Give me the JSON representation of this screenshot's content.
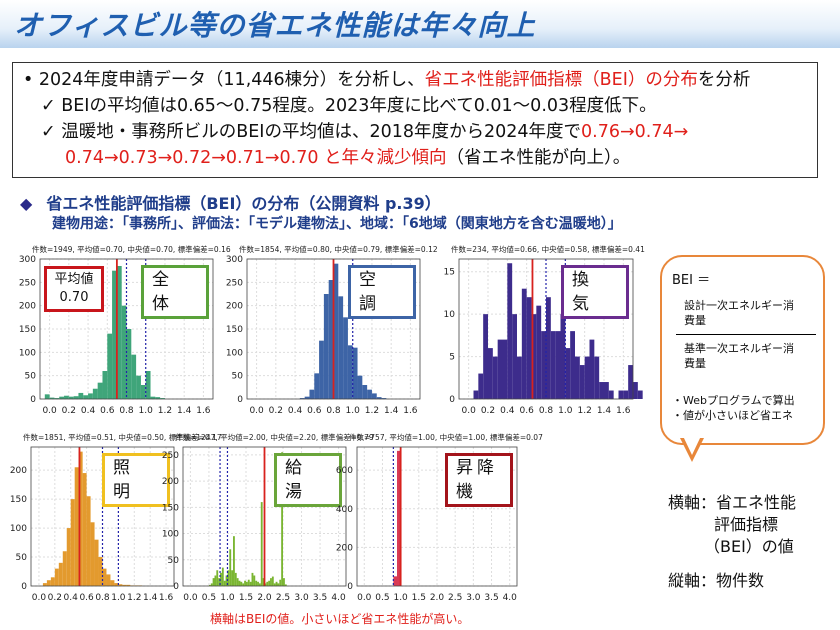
{
  "title": "オフィスビル等の省エネ性能は年々向上",
  "summary": {
    "line1_a": "• 2024年度申請データ（11,446棟分）を分析し、",
    "line1_red": "省エネ性能評価指標（BEI）の分布",
    "line1_b": "を分析",
    "line2": "✓ BEIの平均値は0.65～0.75程度。2023年度に比べて0.01～0.03程度低下。",
    "line3_a": "✓ 温暖地・事務所ビルのBEIの平均値は、2018年度から2024年度で",
    "line3_red": "0.76→0.74→",
    "line4_red": "0.74→0.73→0.72→0.71→0.70 と年々減少傾向",
    "line4_b": "（省エネ性能が向上）。"
  },
  "section": {
    "marker": "◆",
    "title": "省エネ性能評価指標（BEI）の分布（公開資料 p.39）",
    "subtitle": "建物用途：「事務所」、評価法：「モデル建物法」、地域：「6地域（関東地方を含む温暖地）」"
  },
  "mean_box": {
    "label": "平均値",
    "value": "0.70"
  },
  "callout": {
    "formula": "BEI ＝",
    "numerator": "設計一次エネルギー消費量",
    "denominator": "基準一次エネルギー消費量",
    "notes": [
      "・Webプログラムで算出",
      "・値が小さいほど省エネ"
    ]
  },
  "axis_notes": {
    "x": "横軸：省エネ性能",
    "x2": "評価指標",
    "x3": "（BEI）の値",
    "y": "縦軸：物件数"
  },
  "footnote": "横軸はBEIの値。小さいほど省エネ性能が高い。",
  "chart_data": [
    {
      "type": "bar",
      "label": "全 体",
      "stats": "件数=1949, 平均値=0.70, 中央値=0.70, 標準偏差=0.16",
      "color": "#3fa57a",
      "label_color": "#5aa23a",
      "mean": 0.7,
      "ref_lines": [
        0.8,
        1.0
      ],
      "xlim": [
        -0.1,
        1.7
      ],
      "ylim": [
        0,
        300
      ],
      "xticks": [
        "0.0",
        "0.2",
        "0.4",
        "0.6",
        "0.8",
        "1.0",
        "1.2",
        "1.4",
        "1.6"
      ],
      "yticks": [
        "0",
        "50",
        "100",
        "150",
        "200",
        "250",
        "300"
      ],
      "bin_start": -0.05,
      "bin_width": 0.05,
      "counts": [
        10,
        3,
        2,
        5,
        7,
        5,
        6,
        13,
        8,
        12,
        22,
        35,
        60,
        140,
        275,
        285,
        200,
        150,
        95,
        50,
        30,
        60,
        5,
        4,
        2
      ]
    },
    {
      "type": "bar",
      "label": "空 調",
      "stats": "件数=1854, 平均値=0.80, 中央値=0.79, 標準偏差=0.12",
      "color": "#3d64a6",
      "label_color": "#3d64a6",
      "mean": 0.8,
      "ref_lines": [
        1.0
      ],
      "xlim": [
        -0.1,
        1.7
      ],
      "ylim": [
        0,
        300
      ],
      "xticks": [
        "0.0",
        "0.2",
        "0.4",
        "0.6",
        "0.8",
        "1.0",
        "1.2",
        "1.4",
        "1.6"
      ],
      "yticks": [
        "0",
        "50",
        "100",
        "150",
        "200",
        "250",
        "300"
      ],
      "bin_start": 0.45,
      "bin_width": 0.05,
      "counts": [
        2,
        5,
        20,
        55,
        125,
        225,
        255,
        290,
        220,
        175,
        115,
        110,
        50,
        30,
        20,
        12,
        4,
        2
      ]
    },
    {
      "type": "bar",
      "label": "換 気",
      "stats": "件数=234, 平均値=0.66, 中央値=0.58, 標準偏差=0.41",
      "color": "#3d2c8c",
      "label_color": "#6a2d8f",
      "mean": 0.66,
      "ref_lines": [
        0.8,
        1.0
      ],
      "xlim": [
        -0.1,
        1.7
      ],
      "ylim": [
        0,
        16.5
      ],
      "xticks": [
        "0.0",
        "0.2",
        "0.4",
        "0.6",
        "0.8",
        "1.0",
        "1.2",
        "1.4",
        "1.6"
      ],
      "yticks": [
        "0",
        "5",
        "10",
        "15"
      ],
      "bin_start": 0.05,
      "bin_width": 0.05,
      "counts": [
        1,
        3,
        10,
        6,
        5,
        7,
        7,
        16,
        10,
        5,
        13,
        12,
        10,
        11,
        8,
        12,
        8,
        8,
        10,
        6,
        8,
        5,
        4,
        5,
        7,
        5,
        2,
        2,
        1,
        0,
        1,
        1,
        4,
        2,
        1,
        0,
        0,
        0,
        0,
        2
      ]
    },
    {
      "type": "bar",
      "label": "照 明",
      "stats": "件数=1851, 平均値=0.51, 中央値=0.50, 標準偏差=0.17",
      "color": "#e39a2e",
      "label_color": "#f0c020",
      "mean": 0.51,
      "ref_lines": [
        0.8,
        1.0
      ],
      "xlim": [
        -0.1,
        1.7
      ],
      "ylim": [
        0,
        240
      ],
      "xticks": [
        "0.0",
        "0.2",
        "0.4",
        "0.6",
        "0.8",
        "1.0",
        "1.2",
        "1.4",
        "1.6"
      ],
      "yticks": [
        "0",
        "50",
        "100",
        "150",
        "200"
      ],
      "bin_start": 0.05,
      "bin_width": 0.05,
      "counts": [
        5,
        10,
        15,
        30,
        40,
        60,
        100,
        150,
        205,
        232,
        195,
        155,
        110,
        80,
        50,
        30,
        20,
        10,
        5,
        3,
        2,
        2,
        1,
        1,
        1
      ]
    },
    {
      "type": "bar",
      "label": "給 湯",
      "stats": "件数=1247, 平均値=2.00, 中央値=2.20, 標準偏差=0.79",
      "color": "#7ab531",
      "label_color": "#6aa53a",
      "mean": 2.0,
      "ref_lines": [
        0.8,
        1.0
      ],
      "xlim": [
        -0.2,
        4.2
      ],
      "ylim": [
        0,
        265
      ],
      "xticks": [
        "0.0",
        "0.5",
        "1.0",
        "1.5",
        "2.0",
        "2.5",
        "3.0",
        "3.5",
        "4.0"
      ],
      "yticks": [
        "0",
        "50",
        "100",
        "150",
        "200",
        "250"
      ],
      "bin_start": 0.5,
      "bin_width": 0.05,
      "counts": [
        2,
        5,
        15,
        20,
        30,
        15,
        25,
        35,
        10,
        20,
        30,
        70,
        30,
        95,
        25,
        15,
        10,
        8,
        5,
        10,
        8,
        12,
        8,
        25,
        20,
        10,
        8,
        5,
        160,
        15,
        5,
        8,
        10,
        15,
        18,
        5,
        8,
        5,
        12,
        255,
        15,
        3
      ]
    },
    {
      "type": "bar",
      "label": "昇降機",
      "stats": "件数=757, 平均値=1.00, 中央値=1.00, 標準偏差=0.07",
      "color": "#d93a55",
      "label_color": "#a3141b",
      "mean": 1.0,
      "ref_lines": [
        0.8
      ],
      "xlim": [
        -0.2,
        4.2
      ],
      "ylim": [
        0,
        720
      ],
      "xticks": [
        "0.0",
        "0.5",
        "1.0",
        "1.5",
        "2.0",
        "2.5",
        "3.0",
        "3.5",
        "4.0"
      ],
      "yticks": [
        "0",
        "200",
        "400",
        "600"
      ],
      "bin_start": 0.8,
      "bin_width": 0.1,
      "counts": [
        50,
        700
      ]
    }
  ]
}
